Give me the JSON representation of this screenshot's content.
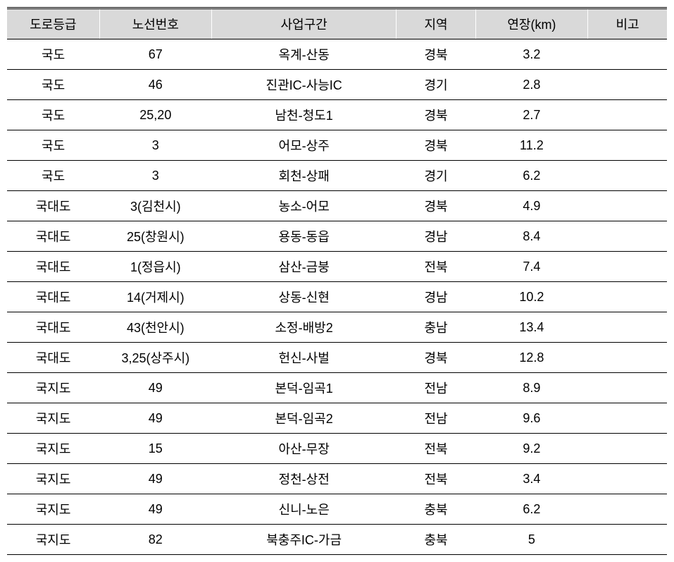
{
  "table": {
    "columns": [
      "도로등급",
      "노선번호",
      "사업구간",
      "지역",
      "연장(km)",
      "비고"
    ],
    "rows": [
      [
        "국도",
        "67",
        "옥계-산동",
        "경북",
        "3.2",
        ""
      ],
      [
        "국도",
        "46",
        "진관IC-사능IC",
        "경기",
        "2.8",
        ""
      ],
      [
        "국도",
        "25,20",
        "남천-청도1",
        "경북",
        "2.7",
        ""
      ],
      [
        "국도",
        "3",
        "어모-상주",
        "경북",
        "11.2",
        ""
      ],
      [
        "국도",
        "3",
        "회천-상패",
        "경기",
        "6.2",
        ""
      ],
      [
        "국대도",
        "3(김천시)",
        "농소-어모",
        "경북",
        "4.9",
        ""
      ],
      [
        "국대도",
        "25(창원시)",
        "용동-동읍",
        "경남",
        "8.4",
        ""
      ],
      [
        "국대도",
        "1(정읍시)",
        "삼산-금붕",
        "전북",
        "7.4",
        ""
      ],
      [
        "국대도",
        "14(거제시)",
        "상동-신현",
        "경남",
        "10.2",
        ""
      ],
      [
        "국대도",
        "43(천안시)",
        "소정-배방2",
        "충남",
        "13.4",
        ""
      ],
      [
        "국대도",
        "3,25(상주시)",
        "헌신-사벌",
        "경북",
        "12.8",
        ""
      ],
      [
        "국지도",
        "49",
        "본덕-임곡1",
        "전남",
        "8.9",
        ""
      ],
      [
        "국지도",
        "49",
        "본덕-임곡2",
        "전남",
        "9.6",
        ""
      ],
      [
        "국지도",
        "15",
        "아산-무장",
        "전북",
        "9.2",
        ""
      ],
      [
        "국지도",
        "49",
        "정천-상전",
        "전북",
        "3.4",
        ""
      ],
      [
        "국지도",
        "49",
        "신니-노은",
        "충북",
        "6.2",
        ""
      ],
      [
        "국지도",
        "82",
        "북충주IC-가금",
        "충북",
        "5",
        ""
      ]
    ],
    "header_bg": "#d9d9d9",
    "border_color": "#000000",
    "background_color": "#ffffff",
    "font_size": 18
  }
}
